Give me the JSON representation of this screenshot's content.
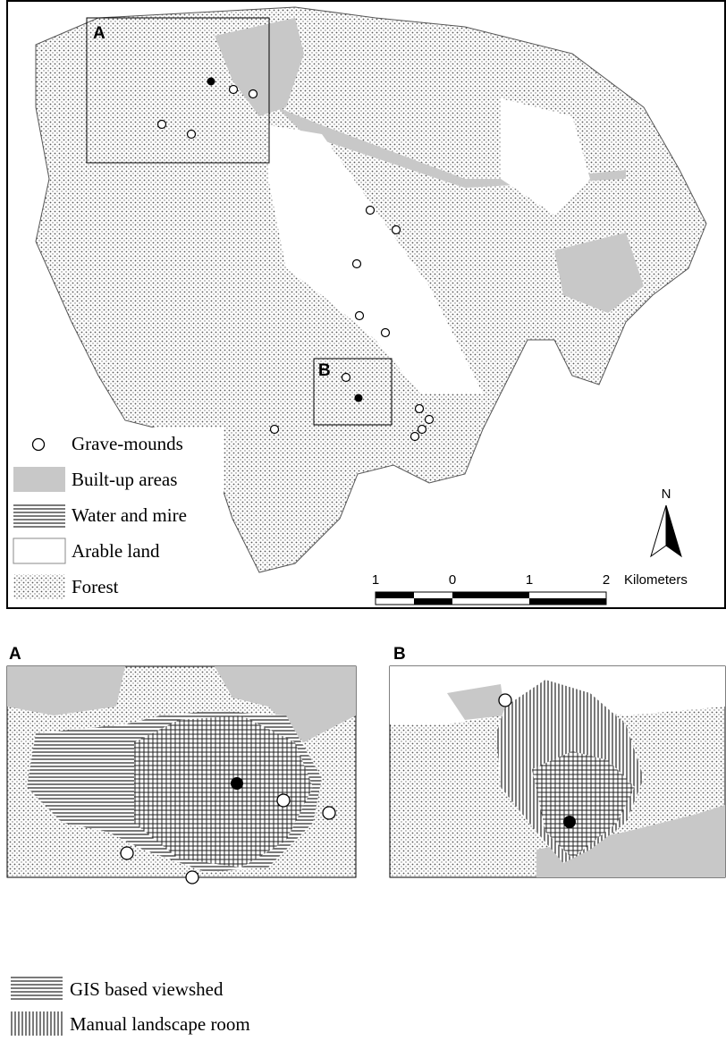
{
  "map": {
    "label_a": "A",
    "label_b": "B",
    "legend": [
      "Grave-mounds",
      "Built-up areas",
      "Water and mire",
      "Arable land",
      "Forest"
    ],
    "north": "N",
    "scale_labels": [
      "1",
      "0",
      "1",
      "2"
    ],
    "scale_unit": "Kilometers"
  },
  "inset_a": {
    "title": "A"
  },
  "inset_b": {
    "title": "B"
  },
  "legend_bottom": [
    "GIS based viewshed",
    "Manual landscape room"
  ]
}
